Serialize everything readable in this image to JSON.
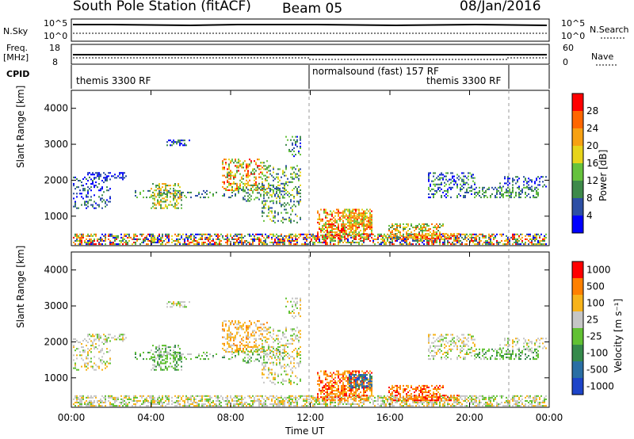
{
  "header": {
    "station": "South Pole Station (fitACF)",
    "beam": "Beam 05",
    "date": "08/Jan/2016"
  },
  "summary": {
    "left_top": "N.Sky",
    "left_top_ticks": [
      "10^5",
      "10^0"
    ],
    "right_top": "N.Search",
    "right_top_ticks": [
      "10^5",
      "10^0"
    ],
    "freq_label": [
      "Freq.",
      "[MHz]"
    ],
    "freq_ticks": [
      "18",
      "8"
    ],
    "nave_label": "Nave",
    "nave_ticks": [
      "60",
      "0"
    ],
    "cpid_label": "CPID",
    "cpid_segments": [
      {
        "label": "themis 3300 RF"
      },
      {
        "label": "normalsound (fast) 157 RF"
      },
      {
        "label": "themis 3300 RF"
      }
    ]
  },
  "chart_data": [
    {
      "type": "heatmap",
      "panel": "power",
      "ylabel": "Slant Range [km]",
      "ylim": [
        180,
        4500
      ],
      "yticks": [
        "4000",
        "3000",
        "2000",
        "1000"
      ],
      "colorbar_label": "Power [dB]",
      "colorbar_ticks": [
        "28",
        "24",
        "20",
        "16",
        "12",
        "8",
        "4"
      ],
      "colors": [
        "#0000ff",
        "#2d4fa5",
        "#3e8a4a",
        "#66c23c",
        "#e7d41a",
        "#f7a112",
        "#ff6600",
        "#ff0000"
      ]
    },
    {
      "type": "heatmap",
      "panel": "velocity",
      "ylabel": "Slant Range [km]",
      "ylim": [
        180,
        4500
      ],
      "yticks": [
        "4000",
        "3000",
        "2000",
        "1000"
      ],
      "colorbar_label": "Velocity [m s⁻¹]",
      "colorbar_ticks": [
        "1000",
        "500",
        "100",
        "25",
        "-25",
        "-100",
        "-500",
        "-1000"
      ],
      "colors": [
        "#1d44c9",
        "#2a6fa4",
        "#358a4b",
        "#61c133",
        "#c6c6c6",
        "#f7b31a",
        "#ff8000",
        "#ff0000"
      ]
    }
  ],
  "xaxis": {
    "label": "Time UT",
    "ticks": [
      "00:00",
      "04:00",
      "08:00",
      "12:00",
      "16:00",
      "20:00",
      "00:00"
    ]
  }
}
